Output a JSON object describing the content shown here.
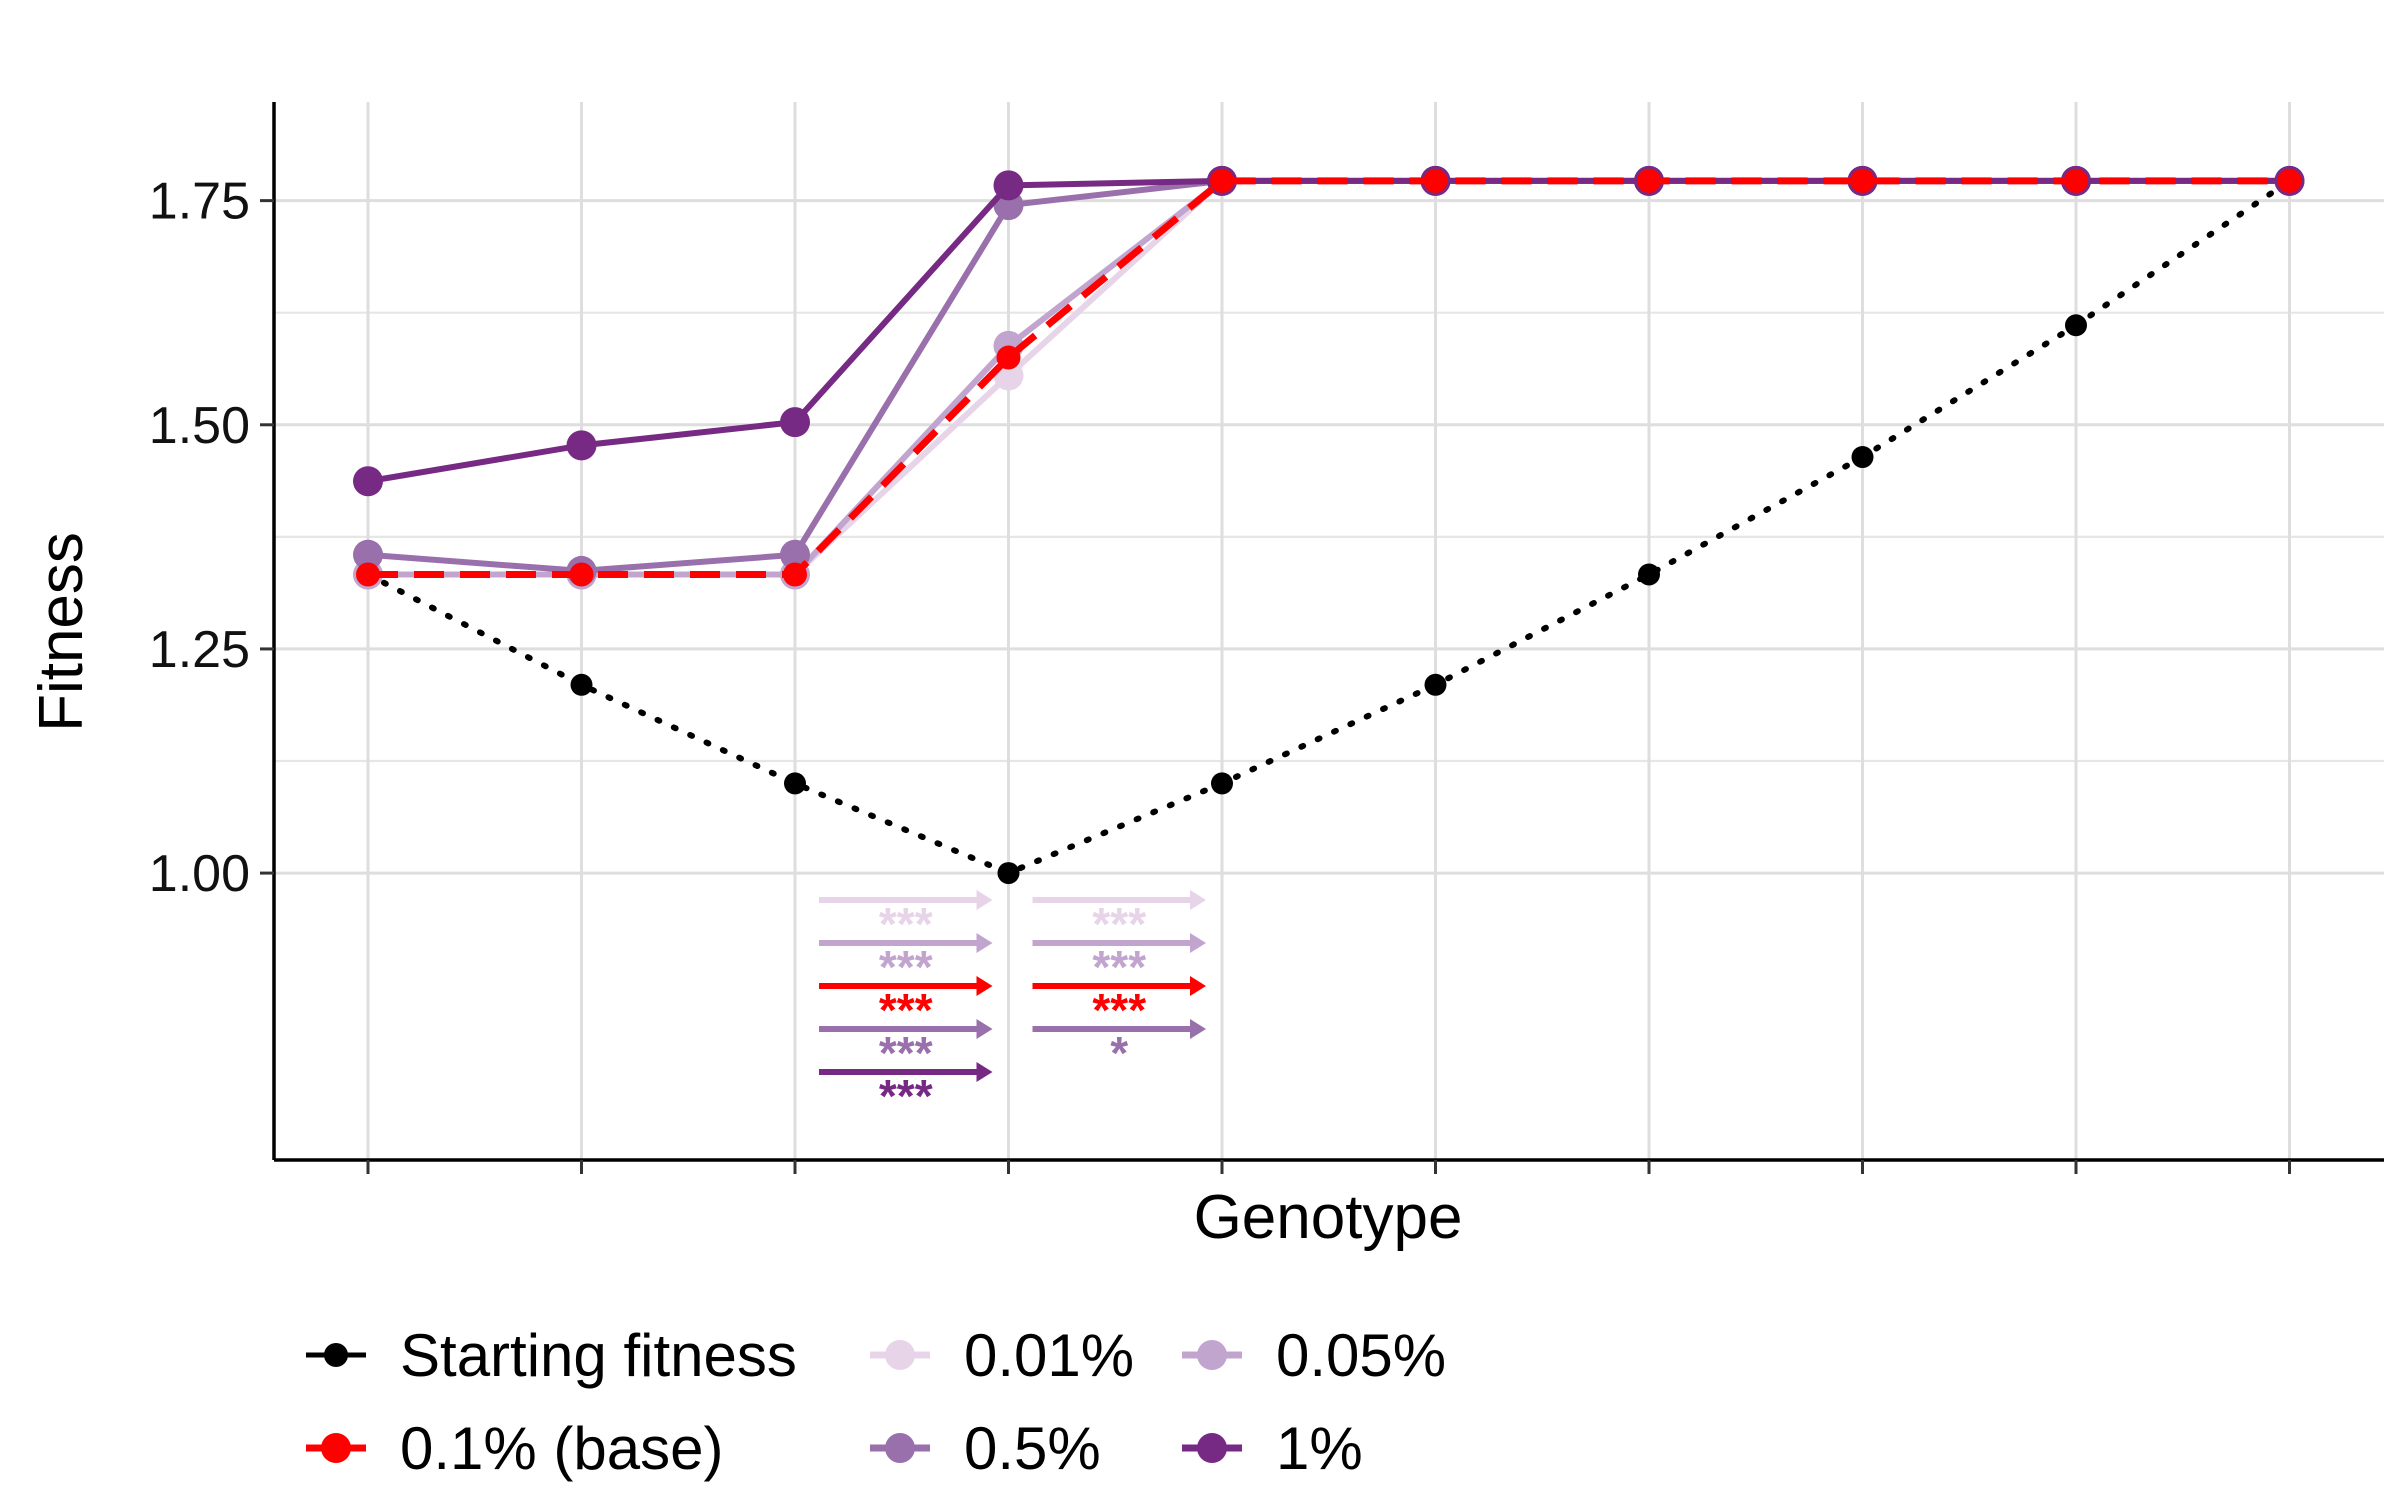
{
  "chart_data": {
    "type": "line",
    "xlabel": "Genotype",
    "ylabel": "Fitness",
    "x": [
      1,
      2,
      3,
      4,
      5,
      6,
      7,
      8,
      9,
      10
    ],
    "x_tick_labels": [],
    "ylim": [
      0.68,
      1.86
    ],
    "y_ticks": [
      1.0,
      1.25,
      1.5,
      1.75
    ],
    "y_tick_labels": [
      "1.00",
      "1.25",
      "1.50",
      "1.75"
    ],
    "grid": true,
    "legend_position": "bottom",
    "series": [
      {
        "name": "Starting fitness",
        "color": "#000000",
        "style": "dotted",
        "values": [
          1.333,
          1.21,
          1.1,
          1.0,
          1.1,
          1.21,
          1.333,
          1.464,
          1.611,
          1.772
        ]
      },
      {
        "name": "0.01%",
        "color": "#E7D4E8",
        "style": "solid",
        "values": [
          1.333,
          1.333,
          1.333,
          1.555,
          1.772,
          1.772,
          1.772,
          1.772,
          1.772,
          1.772
        ]
      },
      {
        "name": "0.05%",
        "color": "#C2A5CF",
        "style": "solid",
        "values": [
          1.333,
          1.333,
          1.333,
          1.588,
          1.772,
          1.772,
          1.772,
          1.772,
          1.772,
          1.772
        ]
      },
      {
        "name": "0.5%",
        "color": "#9970AB",
        "style": "solid",
        "values": [
          1.355,
          1.337,
          1.355,
          1.745,
          1.772,
          1.772,
          1.772,
          1.772,
          1.772,
          1.772
        ]
      },
      {
        "name": "1%",
        "color": "#762A83",
        "style": "solid",
        "values": [
          1.437,
          1.477,
          1.503,
          1.767,
          1.772,
          1.772,
          1.772,
          1.772,
          1.772,
          1.772
        ]
      },
      {
        "name": "0.1% (base)",
        "color": "#FF0000",
        "style": "dashed",
        "values": [
          1.333,
          1.333,
          1.333,
          1.575,
          1.772,
          1.772,
          1.772,
          1.772,
          1.772,
          1.772
        ]
      }
    ],
    "legend_order": [
      "Starting fitness",
      "0.01%",
      "0.05%",
      "0.1% (base)",
      "0.5%",
      "1%"
    ],
    "annotations": [
      {
        "from_x": 3,
        "to_x": 4,
        "rows": [
          {
            "color": "#E7D4E8",
            "label": "***"
          },
          {
            "color": "#C2A5CF",
            "label": "***"
          },
          {
            "color": "#FF0000",
            "label": "***"
          },
          {
            "color": "#9970AB",
            "label": "***"
          },
          {
            "color": "#762A83",
            "label": "***"
          }
        ]
      },
      {
        "from_x": 4,
        "to_x": 5,
        "rows": [
          {
            "color": "#E7D4E8",
            "label": "***"
          },
          {
            "color": "#C2A5CF",
            "label": "***"
          },
          {
            "color": "#FF0000",
            "label": "***"
          },
          {
            "color": "#9970AB",
            "label": "*"
          }
        ]
      }
    ]
  }
}
